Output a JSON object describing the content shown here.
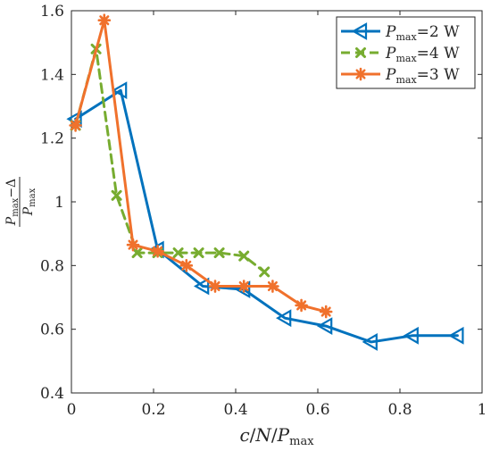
{
  "chart_data": {
    "type": "line",
    "xlabel_parts": {
      "c": "c",
      "slash1": "/",
      "N": "N",
      "slash2": "/",
      "P": "P",
      "sub": "max"
    },
    "ylabel_parts": {
      "P": "P",
      "sub": "max",
      "minus": "−",
      "delta": "Δ"
    },
    "xlim": [
      0,
      1
    ],
    "ylim": [
      0.4,
      1.6
    ],
    "xticks": [
      0,
      0.2,
      0.4,
      0.6,
      0.8,
      1
    ],
    "xtick_labels": [
      "0",
      "0.2",
      "0.4",
      "0.6",
      "0.8",
      "1"
    ],
    "yticks": [
      0.4,
      0.6,
      0.8,
      1.0,
      1.2,
      1.4,
      1.6
    ],
    "ytick_labels": [
      "0.4",
      "0.6",
      "0.8",
      "1",
      "1.2",
      "1.4",
      "1.6"
    ],
    "grid": false,
    "legend_position": "top-right",
    "series": [
      {
        "key": "p2",
        "legend": {
          "P": "P",
          "sub": "max",
          "value": "=2 W"
        },
        "color": "#0072BD",
        "line_style": "solid",
        "marker": "triangle-left",
        "x": [
          0.01,
          0.12,
          0.21,
          0.32,
          0.42,
          0.52,
          0.62,
          0.73,
          0.83,
          0.94
        ],
        "y": [
          1.26,
          1.35,
          0.85,
          0.735,
          0.725,
          0.635,
          0.61,
          0.56,
          0.58,
          0.58
        ]
      },
      {
        "key": "p4",
        "legend": {
          "P": "P",
          "sub": "max",
          "value": "=4 W"
        },
        "color": "#77AC30",
        "line_style": "dashed",
        "marker": "x",
        "x": [
          0.01,
          0.06,
          0.11,
          0.16,
          0.21,
          0.26,
          0.31,
          0.36,
          0.42,
          0.47
        ],
        "y": [
          1.24,
          1.48,
          1.02,
          0.84,
          0.84,
          0.84,
          0.84,
          0.84,
          0.83,
          0.78
        ]
      },
      {
        "key": "p3",
        "legend": {
          "P": "P",
          "sub": "max",
          "value": "=3 W"
        },
        "color": "#F0712C",
        "line_style": "solid",
        "marker": "asterisk",
        "x": [
          0.01,
          0.08,
          0.15,
          0.21,
          0.28,
          0.35,
          0.42,
          0.49,
          0.56,
          0.62
        ],
        "y": [
          1.24,
          1.57,
          0.865,
          0.845,
          0.8,
          0.735,
          0.735,
          0.735,
          0.675,
          0.655
        ]
      }
    ]
  }
}
